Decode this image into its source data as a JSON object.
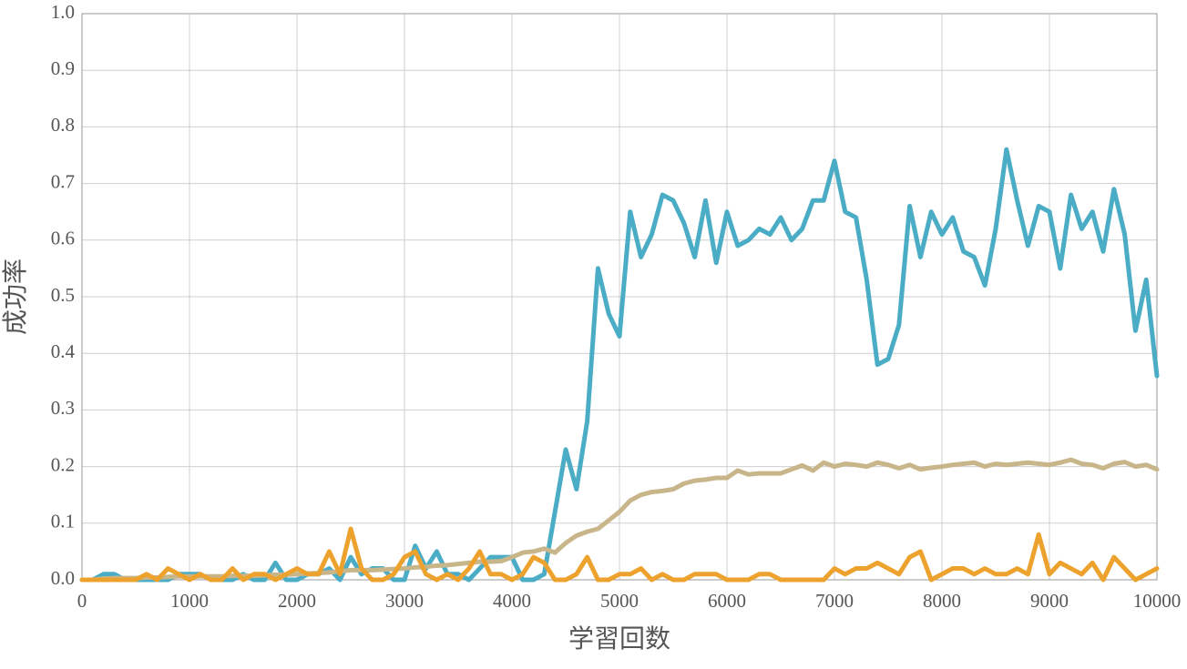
{
  "chart_data": {
    "type": "line",
    "x_label": "学習回数",
    "y_label": "成功率",
    "x": [
      0,
      100,
      200,
      300,
      400,
      500,
      600,
      700,
      800,
      900,
      1000,
      1100,
      1200,
      1300,
      1400,
      1500,
      1600,
      1700,
      1800,
      1900,
      2000,
      2100,
      2200,
      2300,
      2400,
      2500,
      2600,
      2700,
      2800,
      2900,
      3000,
      3100,
      3200,
      3300,
      3400,
      3500,
      3600,
      3700,
      3800,
      3900,
      4000,
      4100,
      4200,
      4300,
      4400,
      4500,
      4600,
      4700,
      4800,
      4900,
      5000,
      5100,
      5200,
      5300,
      5400,
      5500,
      5600,
      5700,
      5800,
      5900,
      6000,
      6100,
      6200,
      6300,
      6400,
      6500,
      6600,
      6700,
      6800,
      6900,
      7000,
      7100,
      7200,
      7300,
      7400,
      7500,
      7600,
      7700,
      7800,
      7900,
      8000,
      8100,
      8200,
      8300,
      8400,
      8500,
      8600,
      8700,
      8800,
      8900,
      9000,
      9100,
      9200,
      9300,
      9400,
      9500,
      9600,
      9700,
      9800,
      9900,
      10000
    ],
    "series": [
      {
        "color": "#4bacc6",
        "values": [
          0,
          0,
          0.01,
          0.01,
          0,
          0,
          0,
          0,
          0,
          0.01,
          0.01,
          0.01,
          0,
          0,
          0,
          0.01,
          0,
          0,
          0.03,
          0,
          0,
          0.01,
          0.01,
          0.02,
          0,
          0.04,
          0.01,
          0.02,
          0.02,
          0,
          0,
          0.06,
          0.02,
          0.05,
          0.01,
          0.01,
          0,
          0.02,
          0.04,
          0.04,
          0.04,
          0,
          0,
          0.01,
          0.12,
          0.23,
          0.16,
          0.28,
          0.55,
          0.47,
          0.43,
          0.65,
          0.57,
          0.61,
          0.68,
          0.67,
          0.63,
          0.57,
          0.67,
          0.56,
          0.65,
          0.59,
          0.6,
          0.62,
          0.61,
          0.64,
          0.6,
          0.62,
          0.67,
          0.67,
          0.74,
          0.65,
          0.64,
          0.53,
          0.38,
          0.39,
          0.45,
          0.66,
          0.57,
          0.65,
          0.61,
          0.64,
          0.58,
          0.57,
          0.52,
          0.62,
          0.76,
          0.67,
          0.59,
          0.66,
          0.65,
          0.55,
          0.68,
          0.62,
          0.65,
          0.58,
          0.69,
          0.61,
          0.44,
          0.53,
          0.36
        ]
      },
      {
        "color": "#c8b68a",
        "values": [
          0,
          0,
          0.002,
          0.003,
          0.003,
          0.003,
          0.004,
          0.004,
          0.005,
          0.006,
          0.006,
          0.006,
          0.006,
          0.006,
          0.007,
          0.007,
          0.007,
          0.008,
          0.009,
          0.009,
          0.01,
          0.011,
          0.012,
          0.013,
          0.015,
          0.017,
          0.017,
          0.017,
          0.018,
          0.019,
          0.02,
          0.022,
          0.023,
          0.025,
          0.026,
          0.028,
          0.03,
          0.032,
          0.032,
          0.033,
          0.04,
          0.048,
          0.05,
          0.055,
          0.048,
          0.065,
          0.078,
          0.085,
          0.09,
          0.105,
          0.12,
          0.14,
          0.15,
          0.155,
          0.157,
          0.16,
          0.17,
          0.175,
          0.177,
          0.18,
          0.18,
          0.193,
          0.186,
          0.188,
          0.188,
          0.188,
          0.195,
          0.202,
          0.193,
          0.207,
          0.2,
          0.205,
          0.203,
          0.2,
          0.207,
          0.203,
          0.197,
          0.203,
          0.195,
          0.198,
          0.2,
          0.203,
          0.205,
          0.207,
          0.2,
          0.205,
          0.203,
          0.205,
          0.207,
          0.205,
          0.203,
          0.207,
          0.212,
          0.205,
          0.203,
          0.197,
          0.205,
          0.208,
          0.2,
          0.203,
          0.195
        ]
      },
      {
        "color": "#eea22e",
        "values": [
          0,
          0,
          0,
          0,
          0,
          0,
          0.01,
          0,
          0.02,
          0.01,
          0,
          0.01,
          0,
          0,
          0.02,
          0,
          0.01,
          0.01,
          0,
          0.01,
          0.02,
          0.01,
          0.01,
          0.05,
          0.01,
          0.09,
          0.02,
          0,
          0,
          0.01,
          0.04,
          0.05,
          0.01,
          0,
          0.01,
          0,
          0.02,
          0.05,
          0.01,
          0.01,
          0,
          0.01,
          0.04,
          0.03,
          0,
          0,
          0.01,
          0.04,
          0,
          0,
          0.01,
          0.01,
          0.02,
          0,
          0.01,
          0,
          0,
          0.01,
          0.01,
          0.01,
          0,
          0,
          0,
          0.01,
          0.01,
          0,
          0,
          0,
          0,
          0,
          0.02,
          0.01,
          0.02,
          0.02,
          0.03,
          0.02,
          0.01,
          0.04,
          0.05,
          0,
          0.01,
          0.02,
          0.02,
          0.01,
          0.02,
          0.01,
          0.01,
          0.02,
          0.01,
          0.08,
          0.01,
          0.03,
          0.02,
          0.01,
          0.03,
          0,
          0.04,
          0.02,
          0,
          0.01,
          0.02
        ]
      }
    ],
    "xlim": [
      0,
      10000
    ],
    "xticks": [
      0,
      1000,
      2000,
      3000,
      4000,
      5000,
      6000,
      7000,
      8000,
      9000,
      10000
    ],
    "ylim": [
      0,
      1
    ],
    "yticks": [
      {
        "value": 0,
        "label": "0.0"
      },
      0.1,
      0.2,
      0.3,
      0.4,
      0.5,
      0.6,
      0.7,
      0.8,
      0.9,
      {
        "value": 1,
        "label": "1.0"
      }
    ],
    "grid": true
  }
}
